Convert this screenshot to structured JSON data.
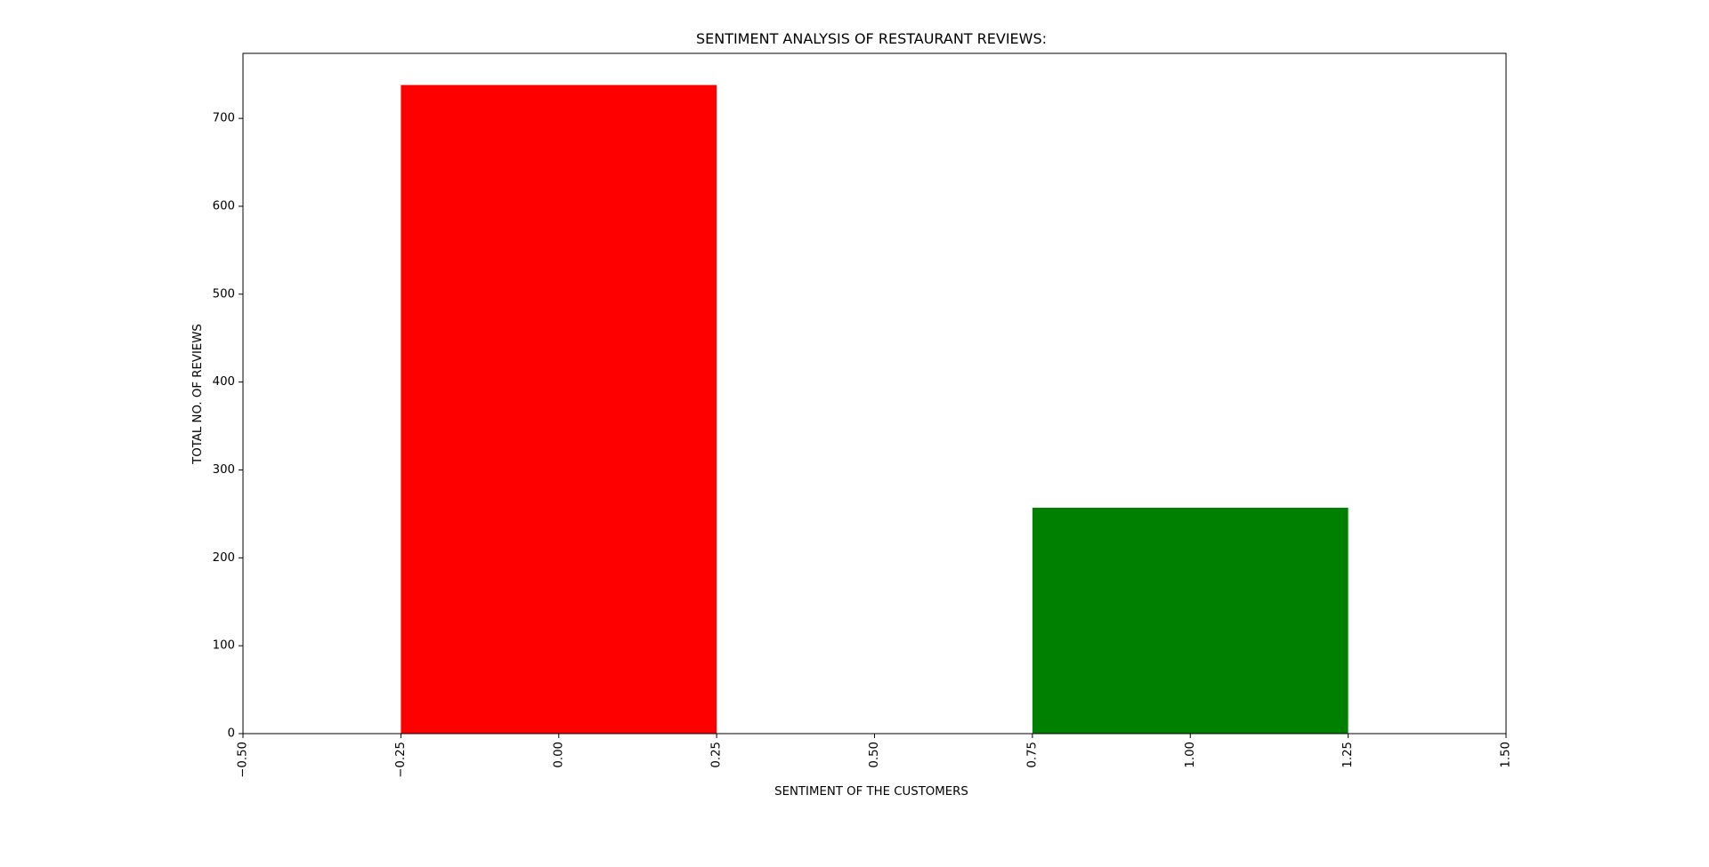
{
  "chart_data": {
    "type": "bar",
    "title": "SENTIMENT ANALYSIS OF RESTAURANT REVIEWS:",
    "xlabel": "SENTIMENT OF THE CUSTOMERS",
    "ylabel": "TOTAL NO. OF REVIEWS",
    "x": [
      0,
      1
    ],
    "values": [
      738,
      257
    ],
    "bar_width": 0.5,
    "colors": [
      "#ff0000",
      "#008000"
    ],
    "xlim": [
      -0.5,
      1.5
    ],
    "ylim": [
      0,
      774
    ],
    "xticks": [
      -0.5,
      -0.25,
      0.0,
      0.25,
      0.5,
      0.75,
      1.0,
      1.25,
      1.5
    ],
    "xtick_labels": [
      "−0.50",
      "−0.25",
      "0.00",
      "0.25",
      "0.50",
      "0.75",
      "1.00",
      "1.25",
      "1.50"
    ],
    "yticks": [
      0,
      100,
      200,
      300,
      400,
      500,
      600,
      700
    ],
    "ytick_labels": [
      "0",
      "100",
      "200",
      "300",
      "400",
      "500",
      "600",
      "700"
    ],
    "xtick_rotation": "vertical",
    "grid": false,
    "legend": "none"
  }
}
